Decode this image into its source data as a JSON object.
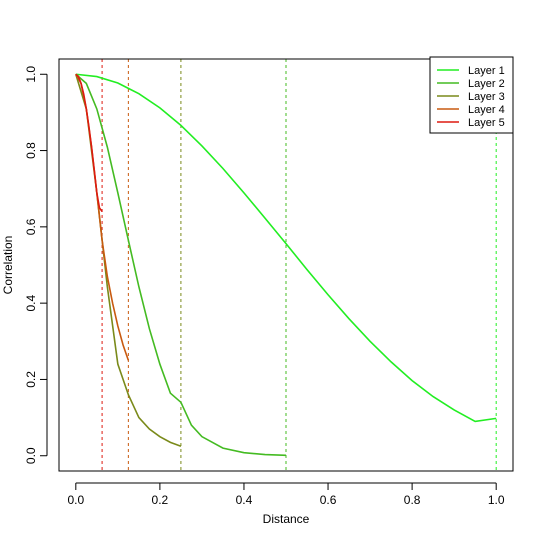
{
  "chart_data": {
    "type": "line",
    "title": "",
    "xlabel": "Distance",
    "ylabel": "Correlation",
    "xlim": [
      -0.04,
      1.04
    ],
    "ylim": [
      -0.04,
      1.04
    ],
    "x_ticks": [
      0.0,
      0.2,
      0.4,
      0.6,
      0.8,
      1.0
    ],
    "y_ticks": [
      0.0,
      0.2,
      0.4,
      0.6,
      0.8,
      1.0
    ],
    "x_tick_labels": [
      "0.0",
      "0.2",
      "0.4",
      "0.6",
      "0.8",
      "1.0"
    ],
    "y_tick_labels": [
      "0.0",
      "0.2",
      "0.4",
      "0.6",
      "0.8",
      "1.0"
    ],
    "grid": false,
    "legend_position": "top-right",
    "series": [
      {
        "name": "Layer 1",
        "color": "#22ee22",
        "x": [
          0,
          0.05,
          0.1,
          0.15,
          0.2,
          0.25,
          0.3,
          0.35,
          0.4,
          0.45,
          0.5,
          0.55,
          0.6,
          0.65,
          0.7,
          0.75,
          0.8,
          0.85,
          0.9,
          0.95,
          1.0
        ],
        "y": [
          1.0,
          0.994,
          0.977,
          0.949,
          0.912,
          0.866,
          0.812,
          0.753,
          0.689,
          0.623,
          0.556,
          0.488,
          0.422,
          0.359,
          0.3,
          0.246,
          0.197,
          0.155,
          0.12,
          0.09,
          0.098
        ],
        "cutoff": 1.0
      },
      {
        "name": "Layer 2",
        "color": "#44bb22",
        "x": [
          0,
          0.025,
          0.05,
          0.075,
          0.1,
          0.125,
          0.15,
          0.175,
          0.2,
          0.225,
          0.25,
          0.275,
          0.3,
          0.35,
          0.4,
          0.45,
          0.5
        ],
        "y": [
          1.0,
          0.976,
          0.909,
          0.809,
          0.689,
          0.565,
          0.443,
          0.333,
          0.24,
          0.164,
          0.14,
          0.08,
          0.05,
          0.02,
          0.008,
          0.003,
          0.001
        ],
        "cutoff": 0.5
      },
      {
        "name": "Layer 3",
        "color": "#7a8a1a",
        "x": [
          0,
          0.025,
          0.05,
          0.075,
          0.1,
          0.125,
          0.15,
          0.175,
          0.2,
          0.225,
          0.25
        ],
        "y": [
          1.0,
          0.909,
          0.689,
          0.443,
          0.24,
          0.16,
          0.1,
          0.07,
          0.05,
          0.035,
          0.025
        ],
        "cutoff": 0.25
      },
      {
        "name": "Layer 4",
        "color": "#c85a10",
        "x": [
          0,
          0.0125,
          0.025,
          0.0375,
          0.05,
          0.0625,
          0.075,
          0.0875,
          0.1,
          0.1125,
          0.125
        ],
        "y": [
          1.0,
          0.976,
          0.909,
          0.809,
          0.689,
          0.565,
          0.47,
          0.4,
          0.34,
          0.29,
          0.25
        ],
        "cutoff": 0.125
      },
      {
        "name": "Layer 5",
        "color": "#dd1a10",
        "x": [
          0,
          0.00625,
          0.0125,
          0.01875,
          0.025,
          0.03125,
          0.0375,
          0.04375,
          0.05,
          0.05625,
          0.0625
        ],
        "y": [
          1.0,
          0.994,
          0.976,
          0.948,
          0.909,
          0.862,
          0.809,
          0.75,
          0.689,
          0.65,
          0.64
        ],
        "cutoff": 0.0625
      }
    ]
  }
}
